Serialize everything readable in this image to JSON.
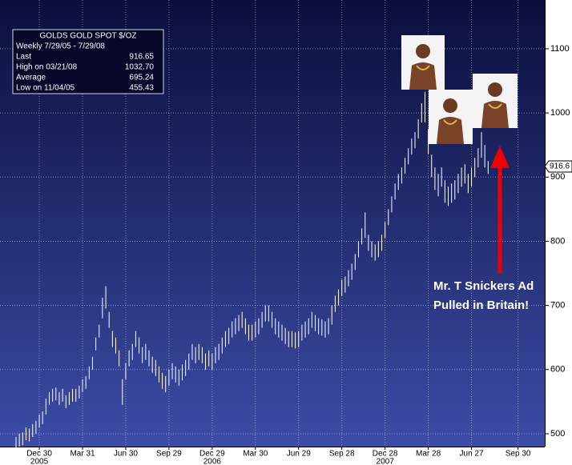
{
  "chart_data": {
    "type": "range-bar",
    "info_box": {
      "header": "GOLDS  GOLD SPOT $/OZ",
      "subheader": "Weekly 7/29/05 - 7/29/08",
      "rows": [
        [
          "Last",
          "916.65"
        ],
        [
          "High on  03/21/08",
          "1032.70"
        ],
        [
          "Average",
          "695.24"
        ],
        [
          "Low on  11/04/05",
          "455.43"
        ]
      ]
    },
    "annotation": [
      "Mr. T Snickers Ad",
      "Pulled in Britain!"
    ],
    "last_price": {
      "value": 916.6,
      "label": "916.6"
    },
    "categories": [
      null,
      null,
      null,
      null,
      null,
      null,
      null,
      "Dec 30",
      null,
      null,
      null,
      null,
      null,
      null,
      null,
      null,
      null,
      null,
      null,
      null,
      "Mar 31",
      null,
      null,
      null,
      null,
      null,
      null,
      null,
      null,
      null,
      null,
      null,
      null,
      "Jun 30",
      null,
      null,
      null,
      null,
      null,
      null,
      null,
      null,
      null,
      null,
      null,
      null,
      "Sep 29",
      null,
      null,
      null,
      null,
      null,
      null,
      null,
      null,
      null,
      null,
      null,
      null,
      "Dec 29",
      null,
      null,
      null,
      null,
      null,
      null,
      null,
      null,
      null,
      null,
      null,
      null,
      "Mar 30",
      null,
      null,
      null,
      null,
      null,
      null,
      null,
      null,
      null,
      null,
      null,
      null,
      "Jun 29",
      null,
      null,
      null,
      null,
      null,
      null,
      null,
      null,
      null,
      null,
      null,
      null,
      "Sep 28",
      null,
      null,
      null,
      null,
      null,
      null,
      null,
      null,
      null,
      null,
      null,
      null,
      "Dec 28",
      null,
      null,
      null,
      null,
      null,
      null,
      null,
      null,
      null,
      null,
      null,
      null,
      "Mar 28",
      null,
      null,
      null,
      null,
      null,
      null,
      null,
      null,
      null,
      null,
      null,
      null,
      "Jun 27",
      null,
      null,
      null,
      null,
      null,
      null,
      null,
      null,
      null,
      null,
      null,
      null,
      null,
      "Sep 30"
    ],
    "category_years": [
      null,
      null,
      null,
      null,
      null,
      null,
      null,
      "2005",
      null,
      null,
      null,
      null,
      null,
      null,
      null,
      null,
      null,
      null,
      null,
      null,
      null,
      null,
      null,
      null,
      null,
      null,
      null,
      null,
      null,
      null,
      null,
      null,
      null,
      null,
      null,
      null,
      null,
      null,
      null,
      null,
      null,
      null,
      null,
      null,
      null,
      null,
      null,
      null,
      null,
      null,
      null,
      null,
      null,
      null,
      null,
      null,
      null,
      null,
      null,
      "2006",
      null,
      null,
      null,
      null,
      null,
      null,
      null,
      null,
      null,
      null,
      null,
      null,
      null,
      null,
      null,
      null,
      null,
      null,
      null,
      null,
      null,
      null,
      null,
      null,
      null,
      null,
      null,
      null,
      null,
      null,
      null,
      null,
      null,
      null,
      null,
      null,
      null,
      null,
      null,
      null,
      null,
      null,
      null,
      null,
      null,
      null,
      null,
      null,
      null,
      null,
      null,
      "2007",
      null,
      null,
      null,
      null,
      null,
      null,
      null,
      null,
      null,
      null,
      null,
      null,
      null,
      null,
      null,
      null,
      null,
      null,
      null,
      null,
      null,
      null,
      null,
      null,
      null,
      null,
      null,
      null,
      null,
      null,
      null,
      null,
      null,
      null,
      null,
      null,
      null,
      null,
      null,
      null
    ],
    "high": [
      495,
      500,
      502,
      510,
      508,
      515,
      520,
      530,
      535,
      555,
      565,
      570,
      572,
      565,
      570,
      560,
      565,
      570,
      570,
      575,
      585,
      590,
      605,
      620,
      650,
      670,
      712,
      730,
      690,
      660,
      650,
      630,
      585,
      610,
      630,
      640,
      660,
      650,
      635,
      640,
      630,
      620,
      615,
      605,
      595,
      590,
      600,
      610,
      605,
      600,
      608,
      615,
      625,
      640,
      635,
      640,
      635,
      625,
      630,
      625,
      635,
      640,
      650,
      660,
      665,
      675,
      680,
      685,
      690,
      680,
      670,
      670,
      675,
      680,
      690,
      700,
      700,
      690,
      680,
      675,
      670,
      665,
      660,
      660,
      658,
      660,
      670,
      675,
      680,
      690,
      685,
      680,
      678,
      675,
      680,
      700,
      715,
      725,
      740,
      745,
      755,
      765,
      780,
      800,
      820,
      845,
      810,
      800,
      795,
      800,
      810,
      830,
      850,
      870,
      890,
      905,
      915,
      930,
      945,
      960,
      970,
      990,
      1015,
      1033,
      975,
      935,
      915,
      905,
      915,
      895,
      885,
      890,
      895,
      905,
      915,
      920,
      905,
      915,
      930,
      945,
      970,
      950,
      925,
      null,
      null,
      null,
      null,
      null,
      null,
      null,
      null,
      null
    ],
    "low": [
      475,
      480,
      482,
      490,
      488,
      495,
      500,
      510,
      515,
      530,
      545,
      550,
      552,
      545,
      550,
      540,
      545,
      550,
      550,
      555,
      565,
      570,
      585,
      600,
      630,
      650,
      680,
      695,
      665,
      635,
      625,
      605,
      545,
      585,
      605,
      615,
      635,
      625,
      610,
      615,
      605,
      595,
      590,
      580,
      570,
      565,
      575,
      585,
      580,
      575,
      583,
      590,
      600,
      615,
      610,
      615,
      610,
      600,
      605,
      600,
      610,
      615,
      625,
      635,
      640,
      650,
      655,
      660,
      665,
      655,
      645,
      645,
      650,
      655,
      665,
      675,
      675,
      665,
      655,
      650,
      645,
      640,
      635,
      635,
      633,
      635,
      645,
      650,
      655,
      665,
      660,
      655,
      653,
      650,
      655,
      670,
      690,
      700,
      715,
      720,
      730,
      740,
      755,
      775,
      795,
      805,
      785,
      775,
      770,
      775,
      785,
      805,
      825,
      845,
      865,
      880,
      890,
      905,
      920,
      935,
      945,
      960,
      985,
      985,
      935,
      900,
      880,
      870,
      885,
      860,
      855,
      860,
      865,
      875,
      885,
      890,
      875,
      885,
      900,
      915,
      930,
      915,
      905,
      null,
      null,
      null,
      null,
      null,
      null,
      null,
      null,
      null
    ],
    "color": "#ffffff",
    "ylim": [
      480,
      1176
    ],
    "yticks": [
      500,
      600,
      700,
      800,
      900,
      1000,
      1100
    ],
    "grid": true
  }
}
